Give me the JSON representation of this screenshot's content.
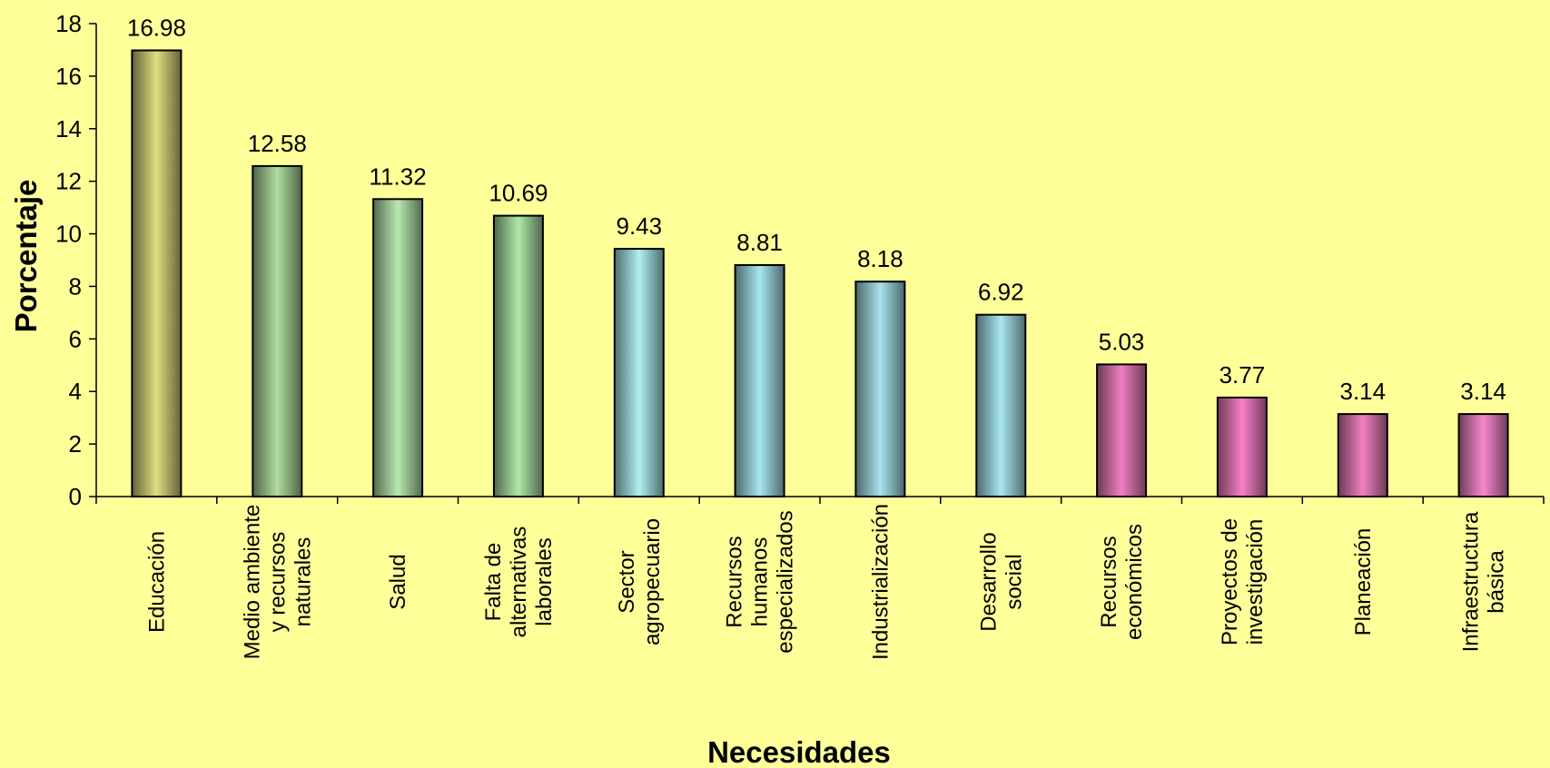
{
  "chart_data": {
    "type": "bar",
    "title": "",
    "xlabel": "Necesidades",
    "ylabel": "Porcentaje",
    "ylim": [
      0,
      18
    ],
    "yticks": [
      0,
      2,
      4,
      6,
      8,
      10,
      12,
      14,
      16,
      18
    ],
    "grid": false,
    "categories": [
      "Educación",
      "Medio ambiente y recursos naturales",
      "Salud",
      "Falta de alternativas laborales",
      "Sector agropecuario",
      "Recursos humanos especializados",
      "Industrialización",
      "Desarrollo social",
      "Recursos económicos",
      "Proyectos de investigación",
      "Planeación",
      "Infraestructura básica"
    ],
    "category_lines": [
      [
        "Educación"
      ],
      [
        "Medio ambiente",
        "y recursos",
        "naturales"
      ],
      [
        "Salud"
      ],
      [
        "Falta de",
        "alternativas",
        "laborales"
      ],
      [
        "Sector",
        "agropecuario"
      ],
      [
        "Recursos",
        "humanos",
        "especializados"
      ],
      [
        "Industrialización"
      ],
      [
        "Desarrollo",
        "social"
      ],
      [
        "Recursos",
        "económicos"
      ],
      [
        "Proyectos de",
        "investigación"
      ],
      [
        "Planeación"
      ],
      [
        "Infraestructura",
        "básica"
      ]
    ],
    "values": [
      16.98,
      12.58,
      11.32,
      10.69,
      9.43,
      8.81,
      8.18,
      6.92,
      5.03,
      3.77,
      3.14,
      3.14
    ],
    "data_labels": [
      "16.98",
      "12.58",
      "11.32",
      "10.69",
      "9.43",
      "8.81",
      "8.18",
      "6.92",
      "5.03",
      "3.77",
      "3.14",
      "3.14"
    ],
    "bar_colors": [
      "#E0DD80",
      "#B0DDA0",
      "#B8EAB0",
      "#B0E8A8",
      "#B0F0F0",
      "#A8E8F0",
      "#A8E4EC",
      "#A8E8F0",
      "#F080C0",
      "#F880C8",
      "#F080C0",
      "#F888CC"
    ],
    "background_color": "#FFFF99"
  }
}
